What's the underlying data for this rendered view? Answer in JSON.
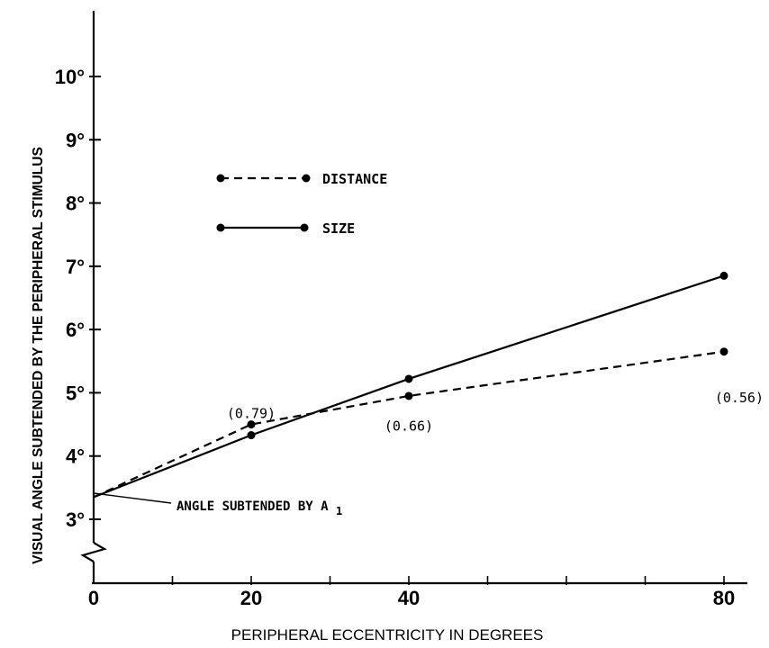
{
  "chart_data": {
    "type": "line",
    "title": "",
    "xlabel": "PERIPHERAL ECCENTRICITY IN DEGREES",
    "ylabel": "VISUAL ANGLE SUBTENDED BY THE PERIPHERAL STIMULUS",
    "x_ticks": [
      "0",
      "20",
      "40",
      "80"
    ],
    "y_ticks": [
      "3°",
      "4°",
      "5°",
      "6°",
      "7°",
      "8°",
      "9°",
      "10°"
    ],
    "y_axis_break": true,
    "grid": false,
    "legend_position": "upper-left",
    "series": [
      {
        "name": "DISTANCE",
        "style": "dashed",
        "x": [
          0,
          20,
          40,
          80
        ],
        "y": [
          3.35,
          4.5,
          4.95,
          5.65
        ]
      },
      {
        "name": "SIZE",
        "style": "solid",
        "x": [
          0,
          20,
          40,
          80
        ],
        "y": [
          3.35,
          4.33,
          5.22,
          6.85
        ]
      }
    ],
    "annotations": [
      {
        "text": "(0.79)",
        "x": 20,
        "y": 4.6
      },
      {
        "text": "(0.66)",
        "x": 40,
        "y": 4.4
      },
      {
        "text": "(0.56)",
        "x": 80,
        "y": 4.85
      }
    ],
    "callout": {
      "text": "ANGLE SUBTENDED BY A",
      "subscript": "1",
      "x": 0,
      "y": 3.35
    }
  }
}
